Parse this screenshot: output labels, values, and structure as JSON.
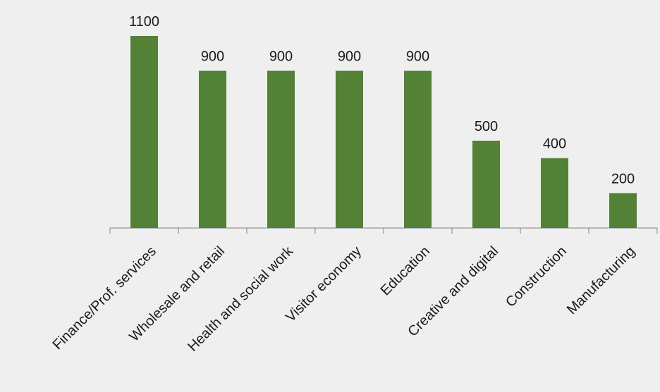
{
  "chart_data": {
    "type": "bar",
    "title": "",
    "xlabel": "",
    "ylabel": "",
    "categories": [
      "Finance/Prof. services",
      "Wholesale and retail",
      "Health and social work",
      "Visitor economy",
      "Education",
      "Creative and digital",
      "Construction",
      "Manufacturing"
    ],
    "values": [
      1100,
      900,
      900,
      900,
      900,
      500,
      400,
      200
    ],
    "ylim": [
      0,
      1100
    ],
    "grid": false,
    "legend": "none",
    "bar_color": "#538135",
    "axis_color": "#808080",
    "background": "#efefef"
  }
}
